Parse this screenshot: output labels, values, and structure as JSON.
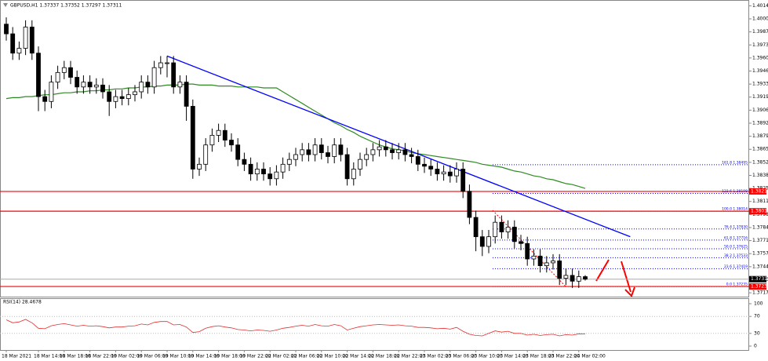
{
  "chart_data": {
    "type": "candlestick",
    "title": "GBPUSD,H1 1.37337 1.37352 1.37297 1.37311",
    "categories": [
      "18 Mar 2021",
      null,
      null,
      null,
      null,
      "18 Mar 14:00",
      null,
      null,
      null,
      "18 Mar 18:00",
      null,
      null,
      null,
      "18 Mar 22:00",
      null,
      null,
      null,
      "19 Mar 02:00",
      null,
      null,
      null,
      "19 Mar 06:00",
      null,
      null,
      null,
      "19 Mar 10:00",
      null,
      null,
      null,
      "19 Mar 14:00",
      null,
      null,
      null,
      "19 Mar 18:00",
      null,
      null,
      null,
      "19 Mar 22:00",
      null,
      null,
      null,
      "22 Mar 02:00",
      null,
      null,
      null,
      "22 Mar 06:00",
      null,
      null,
      null,
      "22 Mar 10:00",
      null,
      null,
      null,
      "22 Mar 14:00",
      null,
      null,
      null,
      "22 Mar 18:00",
      null,
      null,
      null,
      "22 Mar 22:00",
      null,
      null,
      null,
      "23 Mar 02:00",
      null,
      null,
      null,
      "23 Mar 06:00",
      null,
      null,
      null,
      "23 Mar 10:00",
      null,
      null,
      null,
      "23 Mar 14:00",
      null,
      null,
      null,
      "23 Mar 18:00",
      null,
      null,
      null,
      "23 Mar 22:00",
      null,
      null,
      null,
      "24 Mar 02:00",
      null
    ],
    "ohlc": {
      "open": [
        1.3995,
        1.3985,
        1.3965,
        1.397,
        1.3992,
        1.3965,
        1.392,
        1.3915,
        1.3935,
        1.3945,
        1.395,
        1.394,
        1.393,
        1.3935,
        1.393,
        1.3932,
        1.3925,
        1.3915,
        1.392,
        1.3918,
        1.3922,
        1.3925,
        1.3935,
        1.393,
        1.395,
        1.3955,
        1.3955,
        1.393,
        1.3935,
        1.391,
        1.3845,
        1.385,
        1.387,
        1.388,
        1.3885,
        1.3875,
        1.387,
        1.3855,
        1.385,
        1.384,
        1.3845,
        1.384,
        1.3835,
        1.3842,
        1.385,
        1.3855,
        1.386,
        1.3865,
        1.386,
        1.387,
        1.3862,
        1.3858,
        1.387,
        1.386,
        1.3835,
        1.3845,
        1.3855,
        1.386,
        1.3865,
        1.3868,
        1.3865,
        1.3862,
        1.3865,
        1.386,
        1.3858,
        1.385,
        1.3848,
        1.3845,
        1.384,
        1.3842,
        1.3838,
        1.3845,
        1.3822,
        1.3795,
        1.3775,
        1.3765,
        1.3775,
        1.379,
        1.378,
        1.3785,
        1.377,
        1.3768,
        1.3752,
        1.3755,
        1.3745,
        1.3748,
        1.375,
        1.3732,
        1.3735,
        1.3729,
        1.37337
      ],
      "high": [
        1.4002,
        1.3992,
        1.3977,
        1.3999,
        1.3999,
        1.3972,
        1.3927,
        1.3942,
        1.3952,
        1.3957,
        1.3957,
        1.3947,
        1.3942,
        1.3942,
        1.3939,
        1.3939,
        1.3932,
        1.3927,
        1.3927,
        1.3929,
        1.3932,
        1.3942,
        1.3942,
        1.3957,
        1.3962,
        1.3962,
        1.3962,
        1.3942,
        1.3942,
        1.3917,
        1.3857,
        1.3877,
        1.3887,
        1.3892,
        1.3892,
        1.3882,
        1.3877,
        1.3862,
        1.3857,
        1.3852,
        1.3852,
        1.3847,
        1.3849,
        1.3857,
        1.3862,
        1.3867,
        1.3872,
        1.3872,
        1.3877,
        1.3877,
        1.3869,
        1.3877,
        1.3877,
        1.3867,
        1.3852,
        1.3862,
        1.3867,
        1.3872,
        1.3875,
        1.3875,
        1.3872,
        1.3872,
        1.3872,
        1.3867,
        1.3865,
        1.3857,
        1.3855,
        1.3852,
        1.3849,
        1.3849,
        1.3852,
        1.3852,
        1.3829,
        1.3802,
        1.3782,
        1.3782,
        1.3797,
        1.3797,
        1.3792,
        1.3792,
        1.3777,
        1.3775,
        1.3762,
        1.3762,
        1.3755,
        1.3757,
        1.3757,
        1.3742,
        1.3742,
        1.374,
        1.37352
      ],
      "low": [
        1.3978,
        1.3958,
        1.3958,
        1.3963,
        1.3958,
        1.3905,
        1.3905,
        1.3908,
        1.3928,
        1.3938,
        1.3933,
        1.3923,
        1.3923,
        1.3923,
        1.3923,
        1.3918,
        1.39,
        1.3908,
        1.3911,
        1.3911,
        1.3915,
        1.3918,
        1.3923,
        1.3923,
        1.3943,
        1.394,
        1.3923,
        1.3923,
        1.3895,
        1.3835,
        1.3838,
        1.3843,
        1.3863,
        1.3873,
        1.3868,
        1.3863,
        1.3848,
        1.3843,
        1.3833,
        1.3833,
        1.3833,
        1.3828,
        1.3828,
        1.3835,
        1.3843,
        1.3848,
        1.3853,
        1.3853,
        1.3853,
        1.3855,
        1.3851,
        1.3851,
        1.3853,
        1.3828,
        1.3828,
        1.3838,
        1.3848,
        1.3853,
        1.3858,
        1.3858,
        1.3855,
        1.3855,
        1.3853,
        1.3851,
        1.3843,
        1.3841,
        1.3838,
        1.3833,
        1.3833,
        1.3831,
        1.3831,
        1.3815,
        1.3788,
        1.376,
        1.3755,
        1.3758,
        1.3768,
        1.3773,
        1.3773,
        1.3763,
        1.3761,
        1.3745,
        1.3745,
        1.3738,
        1.3738,
        1.3741,
        1.3725,
        1.3725,
        1.3722,
        1.3722,
        1.37297
      ],
      "close": [
        1.3985,
        1.3965,
        1.397,
        1.3992,
        1.3965,
        1.392,
        1.3915,
        1.3935,
        1.3945,
        1.395,
        1.394,
        1.393,
        1.3935,
        1.393,
        1.3932,
        1.3925,
        1.3915,
        1.392,
        1.3918,
        1.3922,
        1.3925,
        1.3935,
        1.393,
        1.395,
        1.3955,
        1.3955,
        1.393,
        1.3935,
        1.391,
        1.3845,
        1.385,
        1.387,
        1.388,
        1.3885,
        1.3875,
        1.387,
        1.3855,
        1.385,
        1.384,
        1.3845,
        1.384,
        1.3835,
        1.3842,
        1.385,
        1.3855,
        1.386,
        1.3865,
        1.386,
        1.387,
        1.3862,
        1.3858,
        1.387,
        1.386,
        1.3835,
        1.3845,
        1.3855,
        1.386,
        1.3865,
        1.3868,
        1.3865,
        1.3862,
        1.3865,
        1.386,
        1.3858,
        1.385,
        1.3848,
        1.3845,
        1.384,
        1.3842,
        1.3838,
        1.3845,
        1.3822,
        1.3795,
        1.3775,
        1.3765,
        1.3775,
        1.379,
        1.378,
        1.3785,
        1.377,
        1.3768,
        1.3752,
        1.3755,
        1.3745,
        1.3748,
        1.375,
        1.3732,
        1.3735,
        1.3729,
        1.37337,
        1.37311
      ]
    },
    "ma": {
      "color": "#2e8b22",
      "values": [
        1.3918,
        1.3919,
        1.3919,
        1.392,
        1.392,
        1.3921,
        1.3922,
        1.3922,
        1.3923,
        1.3924,
        1.3924,
        1.3925,
        1.3925,
        1.3926,
        1.3926,
        1.3927,
        1.3927,
        1.3928,
        1.3928,
        1.3929,
        1.3929,
        1.393,
        1.393,
        1.3931,
        1.3931,
        1.3932,
        1.3932,
        1.3932,
        1.3933,
        1.3933,
        1.3932,
        1.3932,
        1.3932,
        1.3931,
        1.3931,
        1.3931,
        1.393,
        1.393,
        1.393,
        1.393,
        1.3929,
        1.3929,
        1.3929,
        1.3925,
        1.3921,
        1.3917,
        1.3913,
        1.3909,
        1.3905,
        1.3901,
        1.3897,
        1.3893,
        1.389,
        1.3886,
        1.3883,
        1.3879,
        1.3876,
        1.3873,
        1.387,
        1.3868,
        1.3866,
        1.3865,
        1.3864,
        1.3862,
        1.3861,
        1.386,
        1.3859,
        1.3858,
        1.3857,
        1.3856,
        1.3855,
        1.3854,
        1.3853,
        1.3852,
        1.385,
        1.3849,
        1.3848,
        1.3847,
        1.3845,
        1.3843,
        1.3842,
        1.384,
        1.3838,
        1.3837,
        1.3835,
        1.3834,
        1.3832,
        1.383,
        1.3829,
        1.3827,
        1.3825
      ]
    },
    "trendline": {
      "color": "#0000ff",
      "x": [
        25,
        97
      ],
      "y": [
        1.3962,
        1.3775
      ]
    },
    "levels": {
      "color": "#ff0000",
      "values": [
        1.38219,
        1.38014,
        1.37235
      ]
    },
    "current_price": 1.37311,
    "fibonacci": {
      "color": "#0000ff",
      "levels": [
        {
          "value": 1.38495,
          "label": "161.8 1.38495"
        },
        {
          "value": 1.38198,
          "label": "123.6 1.38198"
        },
        {
          "value": 1.38014,
          "label": "100.0 1.38014"
        },
        {
          "value": 1.3783,
          "label": "76.4 1.37830"
        },
        {
          "value": 1.37716,
          "label": "61.8 1.37716"
        },
        {
          "value": 1.37625,
          "label": "50.0 1.37625"
        },
        {
          "value": 1.37533,
          "label": "38.2 1.37533"
        },
        {
          "value": 1.37419,
          "label": "23.6 1.37419"
        },
        {
          "value": 1.37235,
          "label": "0.0 1.37235"
        }
      ]
    },
    "ylim": [
      1.3713,
      1.402
    ],
    "yticks": [
      {
        "value": 1.4014,
        "label": "1.40140"
      },
      1.40005,
      {
        "value": 1.3987,
        "label": "1.39870"
      },
      1.39735,
      {
        "value": 1.396,
        "label": "1.39600"
      },
      1.39465,
      {
        "value": 1.3933,
        "label": "1.39330"
      },
      1.39195,
      {
        "value": 1.3906,
        "label": "1.39060"
      },
      1.38925,
      {
        "value": 1.3879,
        "label": "1.38790"
      },
      1.38655,
      {
        "value": 1.3852,
        "label": "1.38520"
      },
      1.38385,
      {
        "value": 1.3825,
        "label": "1.38250"
      },
      1.38115,
      {
        "value": 1.3798,
        "label": "1.37980"
      },
      1.37845,
      {
        "value": 1.3771,
        "label": "1.37710"
      },
      1.37575,
      {
        "value": 1.3744,
        "label": "1.37440"
      },
      1.37305,
      {
        "value": 1.3717,
        "label": "1.37170"
      }
    ],
    "rsi": {
      "title": "RSI(14) 28.4678",
      "color": "#e03030",
      "ylim": [
        0,
        100
      ],
      "yticks": [
        100,
        70,
        30,
        0
      ],
      "values": [
        62,
        55,
        57,
        63,
        55,
        42,
        41,
        48,
        51,
        53,
        50,
        47,
        49,
        47,
        48,
        46,
        43,
        45,
        45,
        47,
        48,
        52,
        50,
        56,
        58,
        58,
        50,
        51,
        45,
        32,
        34,
        42,
        46,
        48,
        45,
        43,
        39,
        38,
        36,
        38,
        37,
        35,
        38,
        42,
        44,
        47,
        49,
        47,
        51,
        48,
        47,
        51,
        48,
        38,
        42,
        46,
        48,
        50,
        51,
        50,
        49,
        50,
        48,
        47,
        44,
        44,
        43,
        41,
        42,
        40,
        44,
        35,
        28,
        25,
        24,
        30,
        36,
        33,
        35,
        30,
        30,
        26,
        28,
        25,
        27,
        28,
        24,
        27,
        26,
        29,
        28.4678
      ]
    }
  }
}
